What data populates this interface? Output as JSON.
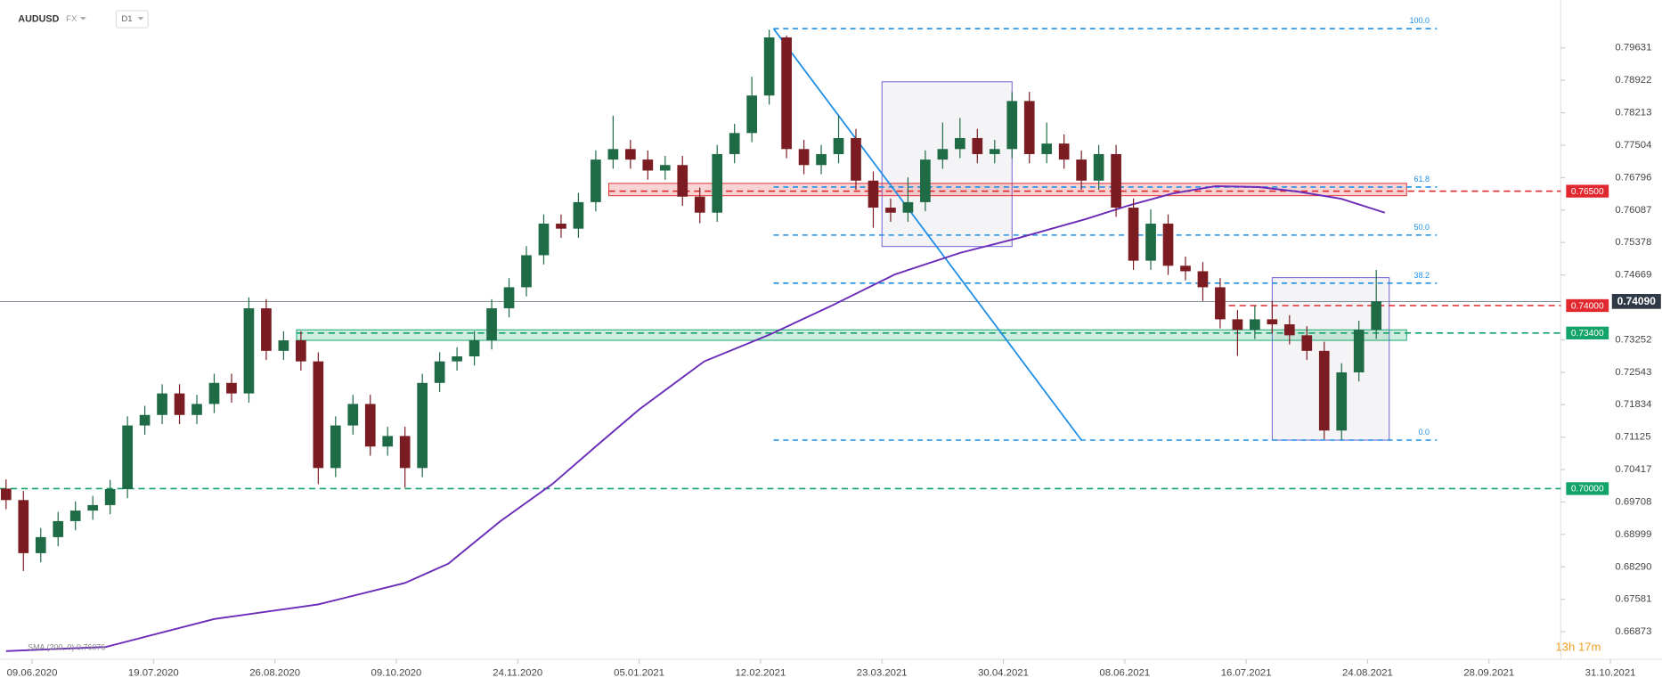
{
  "chart_data": {
    "type": "candlestick",
    "symbol": "AUDUSD",
    "market": "FX",
    "interval": "D1",
    "countdown": "13h 17m",
    "up_color": "#1f6b45",
    "down_color": "#7a1c22",
    "xlim": [
      -7.4,
      375.9
    ],
    "ylim": [
      0.66268,
      0.80677
    ],
    "xticks": [
      {
        "value": 0,
        "label": "09.06.2020"
      },
      {
        "value": 28,
        "label": "19.07.2020"
      },
      {
        "value": 56,
        "label": "26.08.2020"
      },
      {
        "value": 84,
        "label": "09.10.2020"
      },
      {
        "value": 112,
        "label": "24.11.2020"
      },
      {
        "value": 140,
        "label": "05.01.2021"
      },
      {
        "value": 168,
        "label": "12.02.2021"
      },
      {
        "value": 196,
        "label": "23.03.2021"
      },
      {
        "value": 224,
        "label": "30.04.2021"
      },
      {
        "value": 252,
        "label": "08.06.2021"
      },
      {
        "value": 280,
        "label": "16.07.2021"
      },
      {
        "value": 308,
        "label": "24.08.2021"
      },
      {
        "value": 336,
        "label": "28.09.2021"
      },
      {
        "value": 364,
        "label": "31.10.2021"
      }
    ],
    "yticks": [
      {
        "value": 0.79631,
        "label": "0.79631"
      },
      {
        "value": 0.78922,
        "label": "0.78922"
      },
      {
        "value": 0.78213,
        "label": "0.78213"
      },
      {
        "value": 0.77504,
        "label": "0.77504"
      },
      {
        "value": 0.76796,
        "label": "0.76796"
      },
      {
        "value": 0.76087,
        "label": "0.76087"
      },
      {
        "value": 0.75378,
        "label": "0.75378"
      },
      {
        "value": 0.74669,
        "label": "0.74669"
      },
      {
        "value": 0.73252,
        "label": "0.73252"
      },
      {
        "value": 0.72543,
        "label": "0.72543"
      },
      {
        "value": 0.71834,
        "label": "0.71834"
      },
      {
        "value": 0.71125,
        "label": "0.71125"
      },
      {
        "value": 0.70417,
        "label": "0.70417"
      },
      {
        "value": 0.69708,
        "label": "0.69708"
      },
      {
        "value": 0.68999,
        "label": "0.68999"
      },
      {
        "value": 0.6829,
        "label": "0.68290"
      },
      {
        "value": 0.67581,
        "label": "0.67581"
      },
      {
        "value": 0.66873,
        "label": "0.66873"
      }
    ],
    "x": [
      -6,
      -2,
      2,
      6,
      10,
      14,
      18,
      22,
      26,
      30,
      34,
      38,
      42,
      46,
      50,
      54,
      58,
      62,
      66,
      70,
      74,
      78,
      82,
      86,
      90,
      94,
      98,
      102,
      106,
      110,
      114,
      118,
      122,
      126,
      130,
      134,
      138,
      142,
      146,
      150,
      154,
      158,
      162,
      166,
      170,
      174,
      178,
      182,
      186,
      190,
      194,
      198,
      202,
      206,
      210,
      214,
      218,
      222,
      226,
      230,
      234,
      238,
      242,
      246,
      250,
      254,
      258,
      262,
      266,
      270,
      274,
      278,
      282,
      286,
      290,
      294,
      298,
      302,
      306,
      310
    ],
    "open": [
      0.7,
      0.6975,
      0.6859,
      0.6894,
      0.6929,
      0.6952,
      0.6964,
      0.6999,
      0.7138,
      0.7161,
      0.7208,
      0.7161,
      0.7185,
      0.7231,
      0.7208,
      0.7394,
      0.7301,
      0.7324,
      0.7278,
      0.7045,
      0.7138,
      0.7185,
      0.7092,
      0.7115,
      0.7045,
      0.7231,
      0.7278,
      0.7289,
      0.7324,
      0.7394,
      0.744,
      0.751,
      0.7579,
      0.7568,
      0.7626,
      0.7719,
      0.7742,
      0.7719,
      0.7695,
      0.7707,
      0.7638,
      0.7603,
      0.7731,
      0.7777,
      0.7859,
      0.7986,
      0.7742,
      0.7707,
      0.7731,
      0.7766,
      0.7673,
      0.7614,
      0.7603,
      0.7626,
      0.7719,
      0.7742,
      0.7766,
      0.7731,
      0.7742,
      0.7847,
      0.7731,
      0.7754,
      0.7719,
      0.7673,
      0.7731,
      0.7614,
      0.7498,
      0.7579,
      0.7487,
      0.7475,
      0.744,
      0.737,
      0.7347,
      0.737,
      0.7359,
      0.7335,
      0.7301,
      0.7127,
      0.7254,
      0.7347
    ],
    "high": [
      0.702,
      0.6995,
      0.6914,
      0.6949,
      0.6972,
      0.6984,
      0.7019,
      0.7158,
      0.7181,
      0.7228,
      0.7228,
      0.7205,
      0.7251,
      0.7251,
      0.7418,
      0.7414,
      0.7344,
      0.7344,
      0.7298,
      0.7158,
      0.7205,
      0.7205,
      0.7135,
      0.7135,
      0.7251,
      0.7298,
      0.7309,
      0.7344,
      0.7414,
      0.746,
      0.753,
      0.7599,
      0.7599,
      0.7646,
      0.7739,
      0.7815,
      0.7762,
      0.7739,
      0.7727,
      0.7727,
      0.7658,
      0.7751,
      0.7797,
      0.79,
      0.8003,
      0.799,
      0.7762,
      0.7751,
      0.7815,
      0.7786,
      0.7693,
      0.7634,
      0.768,
      0.7739,
      0.78,
      0.781,
      0.7786,
      0.7762,
      0.7867,
      0.7867,
      0.78,
      0.7774,
      0.7739,
      0.7751,
      0.7751,
      0.7634,
      0.761,
      0.7599,
      0.7507,
      0.7495,
      0.746,
      0.739,
      0.74,
      0.741,
      0.7379,
      0.7355,
      0.7321,
      0.7274,
      0.7367,
      0.7478
    ],
    "low": [
      0.6955,
      0.682,
      0.6839,
      0.6874,
      0.6909,
      0.6932,
      0.6944,
      0.6979,
      0.7118,
      0.7141,
      0.7141,
      0.7141,
      0.7165,
      0.7188,
      0.7188,
      0.7281,
      0.7281,
      0.7258,
      0.701,
      0.7025,
      0.7118,
      0.7072,
      0.7072,
      0.7002,
      0.7025,
      0.7211,
      0.7258,
      0.7269,
      0.7304,
      0.7374,
      0.742,
      0.749,
      0.7548,
      0.7548,
      0.7606,
      0.7699,
      0.7699,
      0.7675,
      0.7675,
      0.7618,
      0.758,
      0.7583,
      0.7711,
      0.7757,
      0.7839,
      0.7722,
      0.7687,
      0.7687,
      0.7711,
      0.7653,
      0.757,
      0.7583,
      0.7583,
      0.7606,
      0.7699,
      0.7722,
      0.7711,
      0.7711,
      0.7722,
      0.7711,
      0.7711,
      0.7699,
      0.7653,
      0.7653,
      0.7594,
      0.7478,
      0.7478,
      0.7467,
      0.7455,
      0.741,
      0.735,
      0.729,
      0.7327,
      0.7339,
      0.7315,
      0.7281,
      0.7108,
      0.7107,
      0.7234,
      0.7327
    ],
    "close": [
      0.6975,
      0.6859,
      0.6894,
      0.6929,
      0.6952,
      0.6964,
      0.6999,
      0.7138,
      0.7161,
      0.7208,
      0.7161,
      0.7185,
      0.7231,
      0.7208,
      0.7394,
      0.7301,
      0.7324,
      0.7278,
      0.7045,
      0.7138,
      0.7185,
      0.7092,
      0.7115,
      0.7045,
      0.7231,
      0.7278,
      0.7289,
      0.7324,
      0.7394,
      0.744,
      0.751,
      0.7579,
      0.7568,
      0.7626,
      0.7719,
      0.7742,
      0.7719,
      0.7695,
      0.7707,
      0.7638,
      0.7603,
      0.7731,
      0.7777,
      0.7859,
      0.7986,
      0.7742,
      0.7707,
      0.7731,
      0.7766,
      0.7673,
      0.7614,
      0.7603,
      0.7626,
      0.7719,
      0.7742,
      0.7766,
      0.7731,
      0.7742,
      0.7847,
      0.7731,
      0.7754,
      0.7719,
      0.7673,
      0.7731,
      0.7614,
      0.7498,
      0.7579,
      0.7487,
      0.7475,
      0.744,
      0.737,
      0.7347,
      0.737,
      0.7359,
      0.7335,
      0.7301,
      0.7127,
      0.7254,
      0.7347,
      0.7409
    ],
    "sma": {
      "legend": "SMA (200, 0) 0.76076",
      "color": "#6a2bb8",
      "x": [
        -6,
        17,
        42,
        66,
        86,
        96,
        108,
        120,
        130,
        140,
        155,
        170,
        184,
        199,
        214,
        228,
        243,
        253,
        263,
        273,
        283,
        292,
        302,
        312
      ],
      "values": [
        0.6645,
        0.6654,
        0.6715,
        0.6747,
        0.6794,
        0.6836,
        0.6929,
        0.701,
        0.7092,
        0.7173,
        0.7278,
        0.7336,
        0.7398,
        0.7468,
        0.7515,
        0.7549,
        0.7589,
        0.7619,
        0.7645,
        0.7661,
        0.7659,
        0.7649,
        0.7633,
        0.7603
      ]
    },
    "current_price": {
      "value": 0.7409,
      "label": "0.74090"
    },
    "levels": [
      {
        "value": 0.765,
        "label": "0.76500",
        "color": "#e0282e",
        "start": 133
      },
      {
        "value": 0.74,
        "label": "0.74000",
        "color": "#e0282e",
        "start": 276
      },
      {
        "value": 0.734,
        "label": "0.73400",
        "color": "#12a36a",
        "start": 61
      },
      {
        "value": 0.7,
        "label": "0.70000",
        "color": "#12a36a",
        "start": -7.4
      }
    ],
    "zones": [
      {
        "x": [
          133,
          317
        ],
        "y": [
          0.764,
          0.7667
        ],
        "color": "#e0282e"
      },
      {
        "x": [
          61,
          317
        ],
        "y": [
          0.7324,
          0.7347
        ],
        "color": "#12a36a"
      }
    ],
    "boxes": [
      {
        "x": [
          196,
          226
        ],
        "y": [
          0.7529,
          0.7889
        ]
      },
      {
        "x": [
          286,
          313
        ],
        "y": [
          0.7106,
          0.7461
        ]
      }
    ],
    "fibonacci": {
      "color": "#1e8fe6",
      "x": [
        171,
        324
      ],
      "trend_x": [
        171,
        242
      ],
      "trend_y": [
        0.8005,
        0.7106
      ],
      "levels": [
        {
          "value": 0.8005,
          "label": "100.0"
        },
        {
          "value": 0.7659,
          "label": "61.8"
        },
        {
          "value": 0.7554,
          "label": "50.0"
        },
        {
          "value": 0.7449,
          "label": "38.2"
        },
        {
          "value": 0.7106,
          "label": "0.0"
        }
      ]
    }
  }
}
